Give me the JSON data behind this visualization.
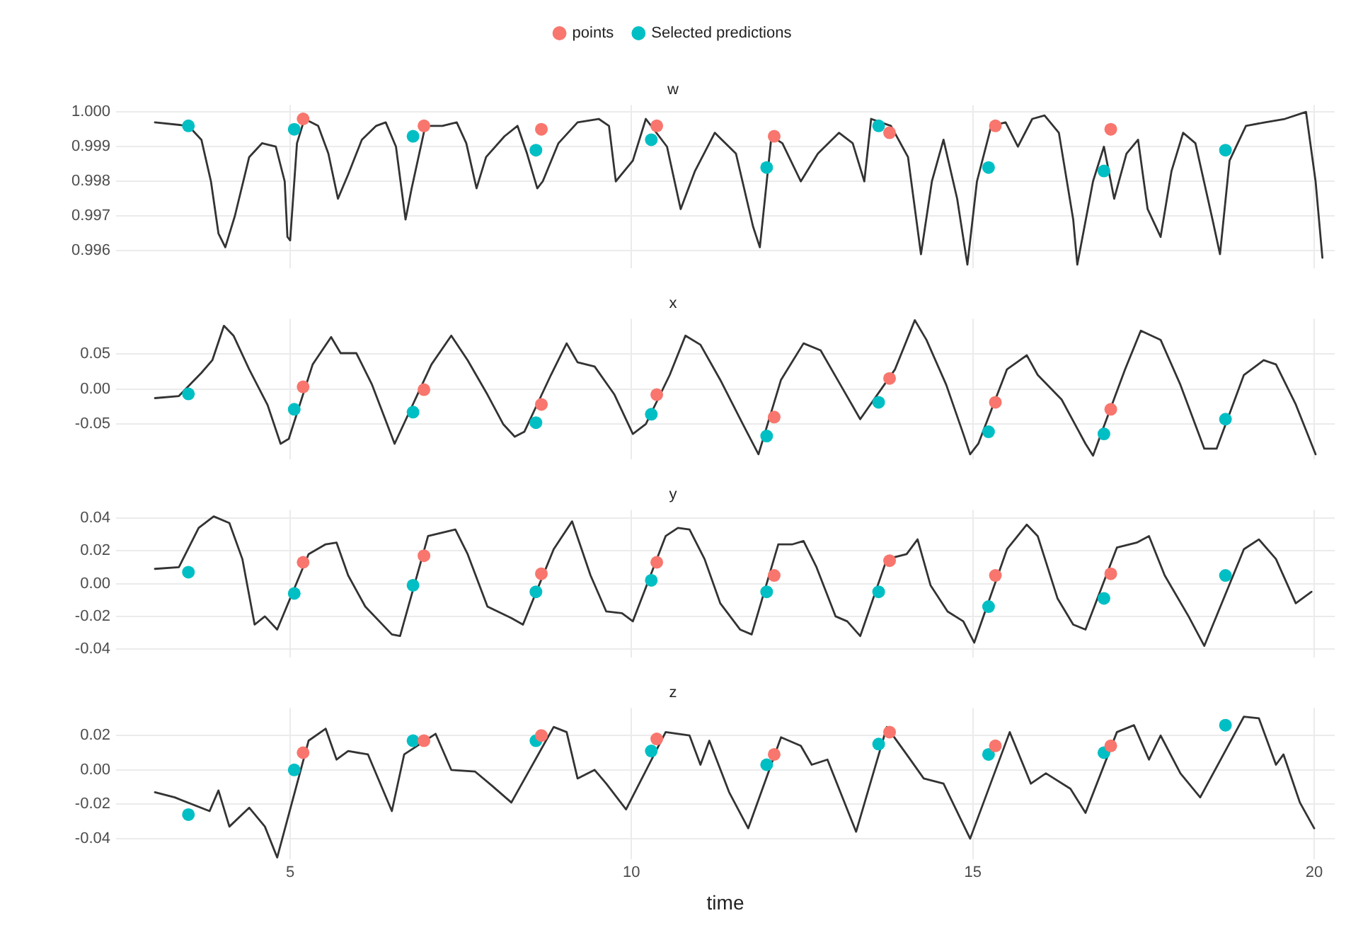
{
  "chart_data": [
    {
      "type": "line",
      "title": "w",
      "xlim": [
        2.45,
        20.3
      ],
      "xticks": [
        5,
        10,
        15,
        20
      ],
      "ylim": [
        0.9955,
        1.0002
      ],
      "yticks": [
        {
          "value": 0.996,
          "label": "0.996"
        },
        {
          "value": 0.997,
          "label": "0.997"
        },
        {
          "value": 0.998,
          "label": "0.998"
        },
        {
          "value": 0.999,
          "label": "0.999"
        },
        {
          "value": 1.0,
          "label": "1.000"
        }
      ],
      "grid": true,
      "legend": "top",
      "tick_labels": "y",
      "series": [
        {
          "name": "points",
          "type": "scatter",
          "marker": "circle",
          "color": "#f8766d",
          "x": [
            5.19,
            6.96,
            8.68,
            10.37,
            12.09,
            13.78,
            15.33,
            17.02
          ],
          "values": [
            0.9998,
            0.9996,
            0.9995,
            0.9996,
            0.9993,
            0.9994,
            0.9996,
            0.9995
          ]
        },
        {
          "name": "Selected predictions",
          "type": "scatter",
          "marker": "circle",
          "color": "#00bfc4",
          "x": [
            3.51,
            5.06,
            6.8,
            8.6,
            10.29,
            11.98,
            13.62,
            15.23,
            16.92,
            18.7
          ],
          "values": [
            0.9996,
            0.9995,
            0.9993,
            0.9989,
            0.9992,
            0.9984,
            0.9996,
            0.9984,
            0.9983,
            0.9989
          ]
        },
        {
          "type": "line",
          "marker": "none",
          "color": "#333333",
          "x": [
            3.02,
            3.51,
            3.7,
            3.84,
            3.95,
            4.05,
            4.19,
            4.4,
            4.59,
            4.79,
            4.92,
            4.96,
            5.0,
            5.1,
            5.21,
            5.41,
            5.56,
            5.7,
            5.85,
            6.05,
            6.26,
            6.4,
            6.55,
            6.69,
            6.78,
            6.98,
            7.23,
            7.44,
            7.58,
            7.73,
            7.87,
            8.14,
            8.33,
            8.47,
            8.62,
            8.7,
            8.93,
            9.21,
            9.52,
            9.67,
            9.77,
            10.02,
            10.21,
            10.52,
            10.72,
            10.93,
            11.22,
            11.53,
            11.78,
            11.88,
            12.05,
            12.21,
            12.48,
            12.73,
            13.04,
            13.24,
            13.41,
            13.51,
            13.8,
            14.05,
            14.24,
            14.4,
            14.57,
            14.77,
            14.92,
            15.06,
            15.27,
            15.48,
            15.66,
            15.87,
            16.05,
            16.26,
            16.47,
            16.53,
            16.76,
            16.92,
            17.07,
            17.25,
            17.42,
            17.56,
            17.75,
            17.91,
            18.08,
            18.26,
            18.51,
            18.62,
            18.76,
            19.0,
            19.28,
            19.57,
            19.88,
            20.02,
            20.12
          ],
          "values": [
            0.9997,
            0.9996,
            0.9992,
            0.998,
            0.9965,
            0.9961,
            0.997,
            0.9987,
            0.9991,
            0.999,
            0.998,
            0.9964,
            0.9963,
            0.9991,
            0.9998,
            0.9996,
            0.9988,
            0.9975,
            0.9982,
            0.9992,
            0.9996,
            0.9997,
            0.999,
            0.9969,
            0.9978,
            0.9996,
            0.9996,
            0.9997,
            0.9991,
            0.9978,
            0.9987,
            0.9993,
            0.9996,
            0.9988,
            0.9978,
            0.998,
            0.9991,
            0.9997,
            0.9998,
            0.9996,
            0.998,
            0.9986,
            0.9998,
            0.999,
            0.9972,
            0.9983,
            0.9994,
            0.9988,
            0.9967,
            0.9961,
            0.9993,
            0.9991,
            0.998,
            0.9988,
            0.9994,
            0.9991,
            0.998,
            0.9998,
            0.9996,
            0.9987,
            0.9959,
            0.998,
            0.9992,
            0.9975,
            0.9956,
            0.998,
            0.9996,
            0.9997,
            0.999,
            0.9998,
            0.9999,
            0.9994,
            0.9969,
            0.9956,
            0.998,
            0.999,
            0.9975,
            0.9988,
            0.9992,
            0.9972,
            0.9964,
            0.9983,
            0.9994,
            0.9991,
            0.9969,
            0.9959,
            0.9986,
            0.9996,
            0.9997,
            0.9998,
            1.0,
            0.998,
            0.9958
          ]
        }
      ]
    },
    {
      "type": "line",
      "title": "x",
      "xlim": [
        2.45,
        20.3
      ],
      "xticks": [
        5,
        10,
        15,
        20
      ],
      "ylim": [
        -0.1,
        0.1
      ],
      "yticks": [
        {
          "value": -0.05,
          "label": "-0.05"
        },
        {
          "value": 0,
          "label": "0.00"
        },
        {
          "value": 0.05,
          "label": "0.05"
        }
      ],
      "grid": true,
      "tick_labels": "y",
      "series": [
        {
          "type": "scatter",
          "marker": "circle",
          "color": "#f8766d",
          "x": [
            5.19,
            6.96,
            8.68,
            10.37,
            12.09,
            13.78,
            15.33,
            17.02
          ],
          "values": [
            0.003,
            -0.001,
            -0.022,
            -0.008,
            -0.04,
            0.015,
            -0.019,
            -0.029
          ]
        },
        {
          "type": "scatter",
          "marker": "circle",
          "color": "#00bfc4",
          "x": [
            3.51,
            5.06,
            6.8,
            8.6,
            10.29,
            11.98,
            13.62,
            15.23,
            16.92,
            18.7
          ],
          "values": [
            -0.007,
            -0.029,
            -0.033,
            -0.048,
            -0.036,
            -0.067,
            -0.019,
            -0.061,
            -0.064,
            -0.043
          ]
        },
        {
          "type": "line",
          "marker": "none",
          "color": "#333333",
          "x": [
            3.02,
            3.37,
            3.7,
            3.86,
            4.03,
            4.17,
            4.4,
            4.67,
            4.86,
            4.98,
            5.33,
            5.6,
            5.74,
            5.97,
            6.2,
            6.53,
            7.07,
            7.36,
            7.6,
            7.89,
            8.12,
            8.29,
            8.43,
            8.82,
            9.05,
            9.21,
            9.46,
            9.75,
            10.02,
            10.21,
            10.56,
            10.79,
            11.01,
            11.3,
            11.63,
            11.86,
            12.19,
            12.52,
            12.77,
            13.06,
            13.35,
            13.86,
            14.15,
            14.32,
            14.61,
            14.86,
            14.96,
            15.08,
            15.5,
            15.79,
            15.95,
            16.3,
            16.65,
            16.76,
            17.23,
            17.46,
            17.75,
            18.04,
            18.39,
            18.57,
            18.97,
            19.26,
            19.44,
            19.73,
            20.02
          ],
          "values": [
            -0.013,
            -0.01,
            0.023,
            0.041,
            0.09,
            0.076,
            0.028,
            -0.023,
            -0.078,
            -0.071,
            0.035,
            0.074,
            0.051,
            0.051,
            0.006,
            -0.078,
            0.035,
            0.076,
            0.041,
            -0.008,
            -0.05,
            -0.068,
            -0.061,
            0.02,
            0.065,
            0.038,
            0.032,
            -0.008,
            -0.064,
            -0.05,
            0.02,
            0.076,
            0.063,
            0.013,
            -0.05,
            -0.093,
            0.013,
            0.065,
            0.055,
            0.006,
            -0.043,
            0.028,
            0.098,
            0.07,
            0.006,
            -0.064,
            -0.093,
            -0.078,
            0.028,
            0.048,
            0.02,
            -0.015,
            -0.078,
            -0.095,
            0.028,
            0.083,
            0.07,
            0.006,
            -0.085,
            -0.085,
            0.02,
            0.041,
            0.035,
            -0.022,
            -0.093
          ]
        }
      ]
    },
    {
      "type": "line",
      "title": "y",
      "xlim": [
        2.45,
        20.3
      ],
      "xticks": [
        5,
        10,
        15,
        20
      ],
      "ylim": [
        -0.045,
        0.045
      ],
      "yticks": [
        {
          "value": -0.04,
          "label": "-0.04"
        },
        {
          "value": -0.02,
          "label": "-0.02"
        },
        {
          "value": 0,
          "label": "0.00"
        },
        {
          "value": 0.02,
          "label": "0.02"
        },
        {
          "value": 0.04,
          "label": "0.04"
        }
      ],
      "grid": true,
      "tick_labels": "y",
      "series": [
        {
          "type": "scatter",
          "marker": "circle",
          "color": "#f8766d",
          "x": [
            5.19,
            6.96,
            8.68,
            10.37,
            12.09,
            13.78,
            15.33,
            17.02
          ],
          "values": [
            0.013,
            0.017,
            0.006,
            0.013,
            0.005,
            0.014,
            0.005,
            0.006
          ]
        },
        {
          "type": "scatter",
          "marker": "circle",
          "color": "#00bfc4",
          "x": [
            3.51,
            5.06,
            6.8,
            8.6,
            10.29,
            11.98,
            13.62,
            15.23,
            16.92,
            18.7
          ],
          "values": [
            0.007,
            -0.006,
            -0.001,
            -0.005,
            0.002,
            -0.005,
            -0.005,
            -0.014,
            -0.009,
            0.005
          ]
        },
        {
          "type": "line",
          "marker": "none",
          "color": "#333333",
          "x": [
            3.02,
            3.37,
            3.66,
            3.88,
            4.11,
            4.3,
            4.48,
            4.63,
            4.81,
            5.27,
            5.52,
            5.68,
            5.85,
            6.1,
            6.49,
            6.61,
            7.02,
            7.42,
            7.6,
            7.89,
            8.24,
            8.41,
            8.86,
            9.13,
            9.4,
            9.63,
            9.86,
            10.02,
            10.5,
            10.68,
            10.85,
            11.07,
            11.3,
            11.59,
            11.76,
            12.15,
            12.36,
            12.52,
            12.71,
            12.99,
            13.16,
            13.35,
            13.74,
            14.03,
            14.19,
            14.38,
            14.63,
            14.86,
            15.02,
            15.5,
            15.79,
            15.95,
            16.24,
            16.47,
            16.65,
            17.11,
            17.4,
            17.58,
            17.81,
            18.16,
            18.39,
            18.97,
            19.19,
            19.44,
            19.73,
            19.96
          ],
          "values": [
            0.009,
            0.01,
            0.034,
            0.041,
            0.037,
            0.015,
            -0.025,
            -0.02,
            -0.028,
            0.018,
            0.024,
            0.025,
            0.005,
            -0.014,
            -0.031,
            -0.032,
            0.029,
            0.033,
            0.018,
            -0.014,
            -0.021,
            -0.025,
            0.021,
            0.038,
            0.005,
            -0.017,
            -0.018,
            -0.023,
            0.029,
            0.034,
            0.033,
            0.015,
            -0.012,
            -0.028,
            -0.031,
            0.024,
            0.024,
            0.026,
            0.01,
            -0.02,
            -0.023,
            -0.032,
            0.015,
            0.018,
            0.027,
            -0.001,
            -0.017,
            -0.023,
            -0.036,
            0.021,
            0.036,
            0.029,
            -0.009,
            -0.025,
            -0.028,
            0.022,
            0.025,
            0.029,
            0.005,
            -0.02,
            -0.038,
            0.021,
            0.027,
            0.015,
            -0.012,
            -0.005
          ]
        }
      ]
    },
    {
      "type": "line",
      "title": "z",
      "xlabel": "time",
      "xlim": [
        2.45,
        20.3
      ],
      "xticks": [
        5,
        10,
        15,
        20
      ],
      "ylim": [
        -0.052,
        0.036
      ],
      "yticks": [
        {
          "value": -0.04,
          "label": "-0.04"
        },
        {
          "value": -0.02,
          "label": "-0.02"
        },
        {
          "value": 0,
          "label": "0.00"
        },
        {
          "value": 0.02,
          "label": "0.02"
        }
      ],
      "grid": true,
      "series": [
        {
          "type": "scatter",
          "marker": "circle",
          "color": "#f8766d",
          "x": [
            5.19,
            6.96,
            8.68,
            10.37,
            12.09,
            13.78,
            15.33,
            17.02
          ],
          "values": [
            0.01,
            0.017,
            0.02,
            0.018,
            0.009,
            0.022,
            0.014,
            0.014
          ]
        },
        {
          "type": "scatter",
          "marker": "circle",
          "color": "#00bfc4",
          "x": [
            3.51,
            5.06,
            6.8,
            8.6,
            10.29,
            11.98,
            13.62,
            15.23,
            16.92,
            18.7
          ],
          "values": [
            -0.026,
            0.0,
            0.017,
            0.017,
            0.011,
            0.003,
            0.015,
            0.009,
            0.01,
            0.026
          ]
        },
        {
          "type": "line",
          "marker": "none",
          "color": "#333333",
          "x": [
            3.02,
            3.31,
            3.82,
            3.95,
            4.11,
            4.4,
            4.63,
            4.81,
            5.27,
            5.52,
            5.68,
            5.85,
            6.14,
            6.49,
            6.67,
            7.13,
            7.36,
            7.71,
            7.95,
            8.24,
            8.86,
            9.05,
            9.21,
            9.46,
            9.63,
            9.92,
            10.5,
            10.85,
            11.01,
            11.14,
            11.43,
            11.71,
            12.19,
            12.48,
            12.64,
            12.87,
            13.29,
            13.74,
            14.03,
            14.28,
            14.57,
            14.96,
            15.54,
            15.85,
            16.07,
            16.43,
            16.65,
            17.11,
            17.36,
            17.58,
            17.75,
            18.04,
            18.33,
            18.97,
            19.19,
            19.44,
            19.55,
            19.79,
            20.0
          ],
          "values": [
            -0.013,
            -0.016,
            -0.024,
            -0.012,
            -0.033,
            -0.022,
            -0.033,
            -0.051,
            0.017,
            0.024,
            0.006,
            0.011,
            0.009,
            -0.024,
            0.009,
            0.021,
            0.0,
            -0.001,
            -0.009,
            -0.019,
            0.025,
            0.022,
            -0.005,
            0.0,
            -0.008,
            -0.023,
            0.022,
            0.02,
            0.003,
            0.017,
            -0.013,
            -0.034,
            0.019,
            0.014,
            0.003,
            0.006,
            -0.036,
            0.025,
            0.009,
            -0.005,
            -0.008,
            -0.04,
            0.022,
            -0.008,
            -0.002,
            -0.011,
            -0.025,
            0.022,
            0.026,
            0.006,
            0.02,
            -0.002,
            -0.016,
            0.031,
            0.03,
            0.003,
            0.009,
            -0.019,
            -0.034
          ]
        }
      ]
    }
  ]
}
